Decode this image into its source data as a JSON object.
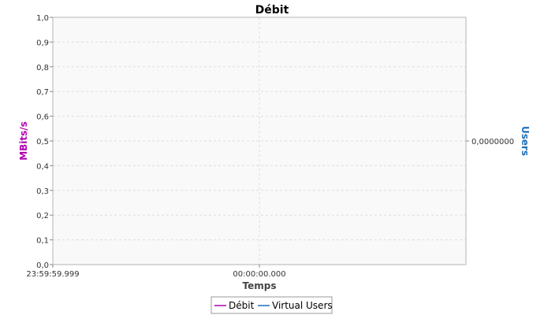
{
  "chart_data": {
    "type": "line",
    "title": "Débit",
    "xlabel": "Temps",
    "ylabel": "MBits/s",
    "y2label": "Users",
    "ylim": [
      0,
      1.0
    ],
    "yticks": [
      "0,0",
      "0,1",
      "0,2",
      "0,3",
      "0,4",
      "0,5",
      "0,6",
      "0,7",
      "0,8",
      "0,9",
      "1,0"
    ],
    "y2ticks": [
      "0,0000000"
    ],
    "xticks": [
      "23:59:59.999",
      "00:00:00.000"
    ],
    "grid": true,
    "legend_position": "bottom",
    "series": [
      {
        "name": "Débit",
        "axis": "left",
        "values": [],
        "color": "#b000b0"
      },
      {
        "name": "Virtual Users",
        "axis": "right",
        "values": [],
        "color": "#1f6fb4"
      }
    ],
    "colors": {
      "ylabel": "#b000b0",
      "y2label": "#1f6fb4",
      "plot_background": "#f9f9f9",
      "grid": "#dddddd"
    }
  }
}
